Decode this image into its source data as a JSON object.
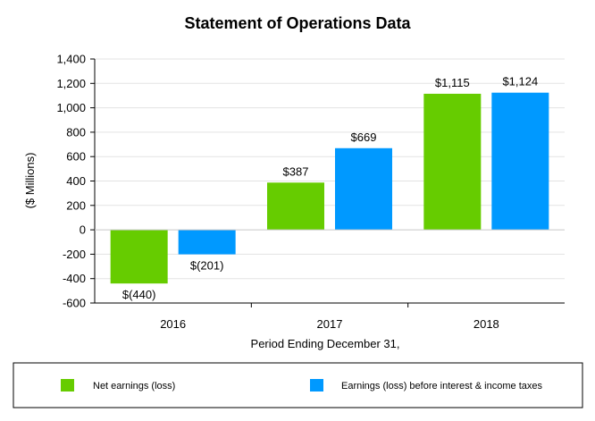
{
  "chart_data": {
    "type": "bar",
    "title": "Statement of Operations Data",
    "xlabel": "Period Ending December 31,",
    "ylabel": "($ Millions)",
    "ylim": [
      -600,
      1400
    ],
    "yticks": [
      -600,
      -400,
      -200,
      0,
      200,
      400,
      600,
      800,
      1000,
      1200,
      1400
    ],
    "ytick_labels": [
      "-600",
      "-400",
      "-200",
      "0",
      "200",
      "400",
      "600",
      "800",
      "1,000",
      "1,200",
      "1,400"
    ],
    "categories": [
      "2016",
      "2017",
      "2018"
    ],
    "grid": true,
    "legend_position": "bottom",
    "series": [
      {
        "name": "Net earnings (loss)",
        "color": "#66cc00",
        "values": [
          -440,
          387,
          1115
        ],
        "labels": [
          "$(440)",
          "$387",
          "$1,115"
        ]
      },
      {
        "name": "Earnings (loss) before interest & income taxes",
        "color": "#0099ff",
        "values": [
          -201,
          669,
          1124
        ],
        "labels": [
          "$(201)",
          "$669",
          "$1,124"
        ]
      }
    ]
  }
}
